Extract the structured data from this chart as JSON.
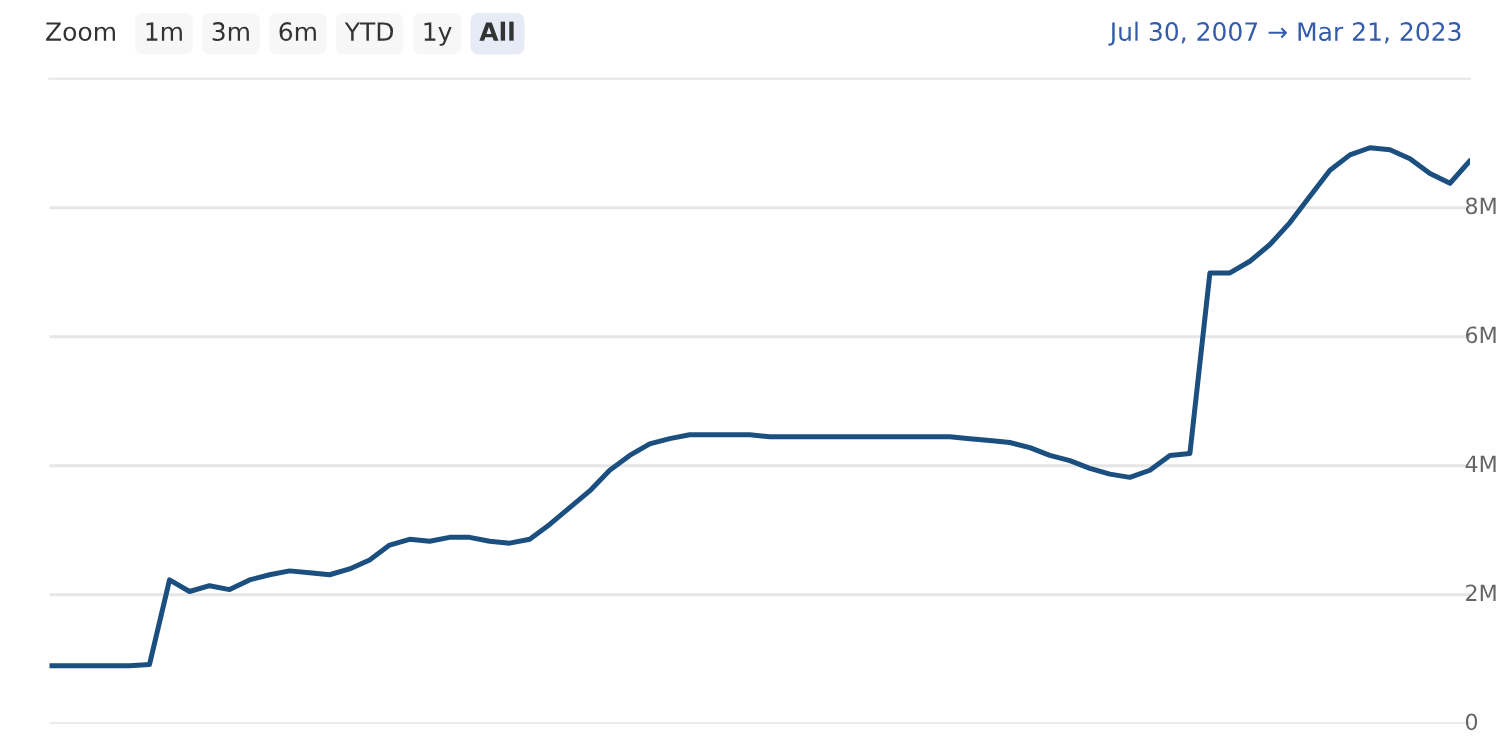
{
  "chart_data": {
    "type": "line",
    "subtitle": "Jul 30, 2007 → Mar 21, 2023",
    "annotations": [
      "Zoom",
      "1m",
      "3m",
      "6m",
      "YTD",
      "1y",
      "All"
    ],
    "categories": [
      null,
      null,
      null,
      null,
      null,
      null,
      null,
      null,
      null,
      null,
      null,
      null,
      null,
      null,
      null,
      null,
      null,
      null,
      null,
      null,
      null,
      null,
      null,
      null,
      null,
      null,
      null,
      null,
      null,
      null,
      null,
      null,
      null,
      null,
      null,
      null,
      null,
      null,
      null,
      null,
      null,
      null,
      null,
      null,
      null,
      null,
      null,
      null,
      null,
      null,
      null,
      null,
      null,
      null,
      null,
      null,
      null,
      null,
      null,
      null,
      null,
      null,
      null,
      null,
      null,
      null,
      null,
      null,
      null,
      null,
      null,
      null
    ],
    "series": [
      {
        "color": "#1b4f80",
        "values": [
          900000,
          900000,
          900000,
          900000,
          900000,
          920000,
          2230000,
          2050000,
          2140000,
          2080000,
          2230000,
          2310000,
          2370000,
          2340000,
          2310000,
          2400000,
          2540000,
          2770000,
          2860000,
          2830000,
          2890000,
          2890000,
          2830000,
          2800000,
          2860000,
          3090000,
          3350000,
          3610000,
          3930000,
          4160000,
          4340000,
          4420000,
          4480000,
          4480000,
          4480000,
          4480000,
          4450000,
          4450000,
          4450000,
          4450000,
          4450000,
          4450000,
          4450000,
          4450000,
          4450000,
          4450000,
          4420000,
          4390000,
          4360000,
          4280000,
          4160000,
          4080000,
          3960000,
          3870000,
          3820000,
          3930000,
          4160000,
          4190000,
          6990000,
          6990000,
          7170000,
          7430000,
          7770000,
          8180000,
          8580000,
          8820000,
          8930000,
          8900000,
          8760000,
          8530000,
          8380000,
          8730000
        ]
      }
    ],
    "ylim": [
      0,
      10000000
    ],
    "yticks": [
      {
        "value": 0,
        "label": "0"
      },
      {
        "value": 2000000,
        "label": "2M"
      },
      {
        "value": 4000000,
        "label": "4M"
      },
      {
        "value": 6000000,
        "label": "6M"
      },
      {
        "value": 8000000,
        "label": "8M"
      }
    ],
    "tick_labels": "y",
    "grid": "y",
    "line_style": "solid",
    "marker": "none"
  }
}
